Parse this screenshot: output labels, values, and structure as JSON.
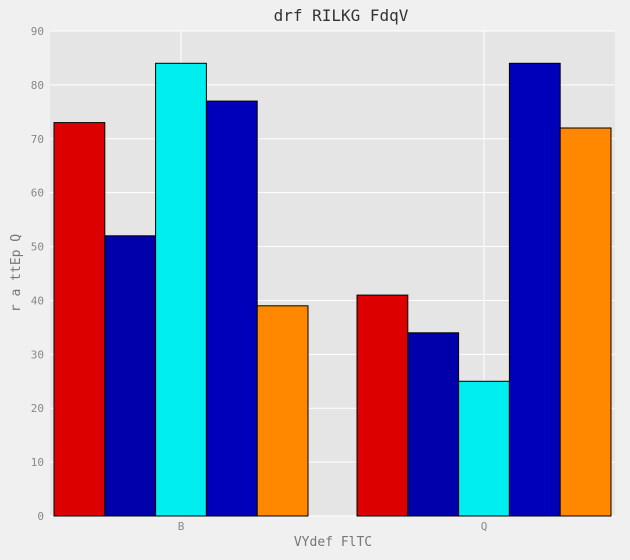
{
  "chart_data": {
    "type": "bar",
    "title": "drf RILKG FdqV",
    "xlabel": "VYdef FlTC",
    "ylabel": "r a ttEp Q",
    "categories": [
      "B",
      "Q"
    ],
    "ylim": [
      0,
      90
    ],
    "yticks": [
      0,
      10,
      20,
      30,
      40,
      50,
      60,
      70,
      80,
      90
    ],
    "grid": true,
    "series": [
      {
        "color": "#dd0000",
        "values": [
          73,
          41
        ]
      },
      {
        "color": "#0000aa",
        "values": [
          52,
          34
        ]
      },
      {
        "color": "#00eeee",
        "values": [
          84,
          25
        ]
      },
      {
        "color": "#0000bb",
        "values": [
          77,
          84
        ]
      },
      {
        "color": "#ff8800",
        "values": [
          39,
          72
        ]
      }
    ],
    "colors": {
      "plot_background": "#e5e5e5",
      "figure_background": "#f0f0f0",
      "grid": "#ffffff",
      "bar_edge": "#000000"
    }
  }
}
